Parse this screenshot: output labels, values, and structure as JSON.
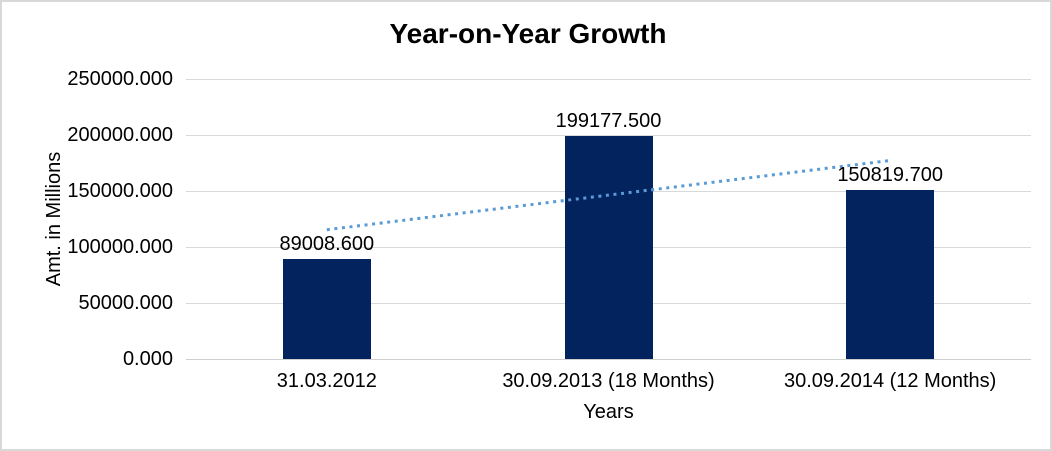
{
  "chart_data": {
    "type": "bar",
    "title": "Year-on-Year Growth",
    "xlabel": "Years",
    "ylabel": "Amt. in Millions",
    "categories": [
      "31.03.2012",
      "30.09.2013 (18 Months)",
      "30.09.2014 (12 Months)"
    ],
    "values": [
      89008.6,
      199177.5,
      150819.7
    ],
    "value_labels": [
      "89008.600",
      "199177.500",
      "150819.700"
    ],
    "ylim": [
      0,
      250000
    ],
    "ytick_step": 50000,
    "ytick_labels": [
      "250000.000",
      "200000.000",
      "150000.000",
      "100000.000",
      "50000.000",
      "0.000"
    ],
    "grid": true,
    "legend": false,
    "trendline": {
      "type": "linear",
      "style": "dotted"
    },
    "colors": {
      "bar": "#03235f",
      "trendline": "#5b9bd5",
      "gridline": "#d9d9d9",
      "axis_line": "#cfcfcf",
      "text": "#000000",
      "frame_border": "#d8d8d8"
    }
  }
}
